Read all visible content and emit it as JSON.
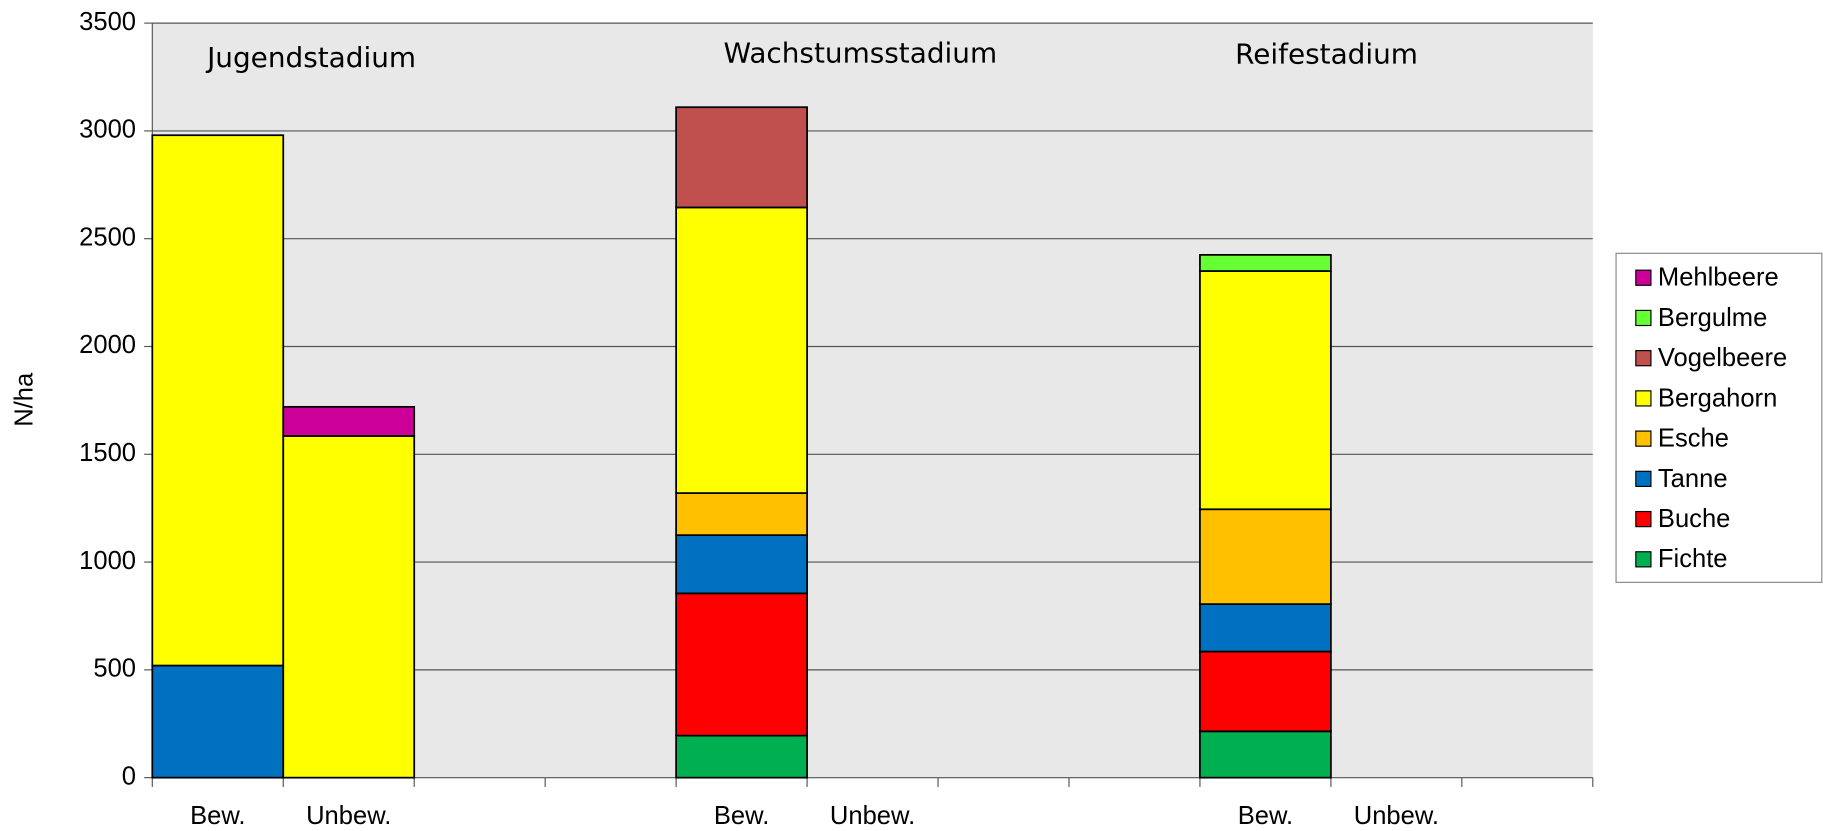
{
  "chart_data": {
    "type": "stacked_bar",
    "y_label": "N/ha",
    "annotations": [
      "Jugendstadium",
      "Wachstumsstadium",
      "Reifestadium"
    ],
    "categories": [
      "Bew.",
      "Unbew.",
      null,
      null,
      "Bew.",
      "Unbew.",
      null,
      null,
      "Bew.",
      "Unbew.",
      null
    ],
    "series": [
      {
        "name": "Fichte",
        "color": "#00b050",
        "values": [
          null,
          null,
          null,
          null,
          195,
          null,
          null,
          null,
          215,
          null,
          null
        ]
      },
      {
        "name": "Buche",
        "color": "#ff0000",
        "values": [
          null,
          null,
          null,
          null,
          660,
          null,
          null,
          null,
          370,
          null,
          null
        ]
      },
      {
        "name": "Tanne",
        "color": "#0070c0",
        "values": [
          520,
          null,
          null,
          null,
          270,
          null,
          null,
          null,
          220,
          null,
          null
        ]
      },
      {
        "name": "Esche",
        "color": "#ffc000",
        "values": [
          null,
          null,
          null,
          null,
          195,
          null,
          null,
          null,
          440,
          null,
          null
        ]
      },
      {
        "name": "Bergahorn",
        "color": "#ffff00",
        "values": [
          2460,
          1585,
          null,
          null,
          1325,
          null,
          null,
          null,
          1105,
          null,
          null
        ]
      },
      {
        "name": "Vogelbeere",
        "color": "#c0504d",
        "values": [
          null,
          null,
          null,
          null,
          465,
          null,
          null,
          null,
          null,
          null,
          null
        ]
      },
      {
        "name": "Bergulme",
        "color": "#66ff33",
        "values": [
          null,
          null,
          null,
          null,
          null,
          null,
          null,
          null,
          75,
          null,
          null
        ]
      },
      {
        "name": "Mehlbeere",
        "color": "#cc0099",
        "values": [
          null,
          135,
          null,
          null,
          null,
          null,
          null,
          null,
          null,
          null,
          null
        ]
      }
    ],
    "ylim": [
      0,
      3500
    ],
    "yticks": [
      0,
      500,
      1000,
      1500,
      2000,
      2500,
      3000,
      3500
    ],
    "grid": true,
    "legend": "right"
  }
}
